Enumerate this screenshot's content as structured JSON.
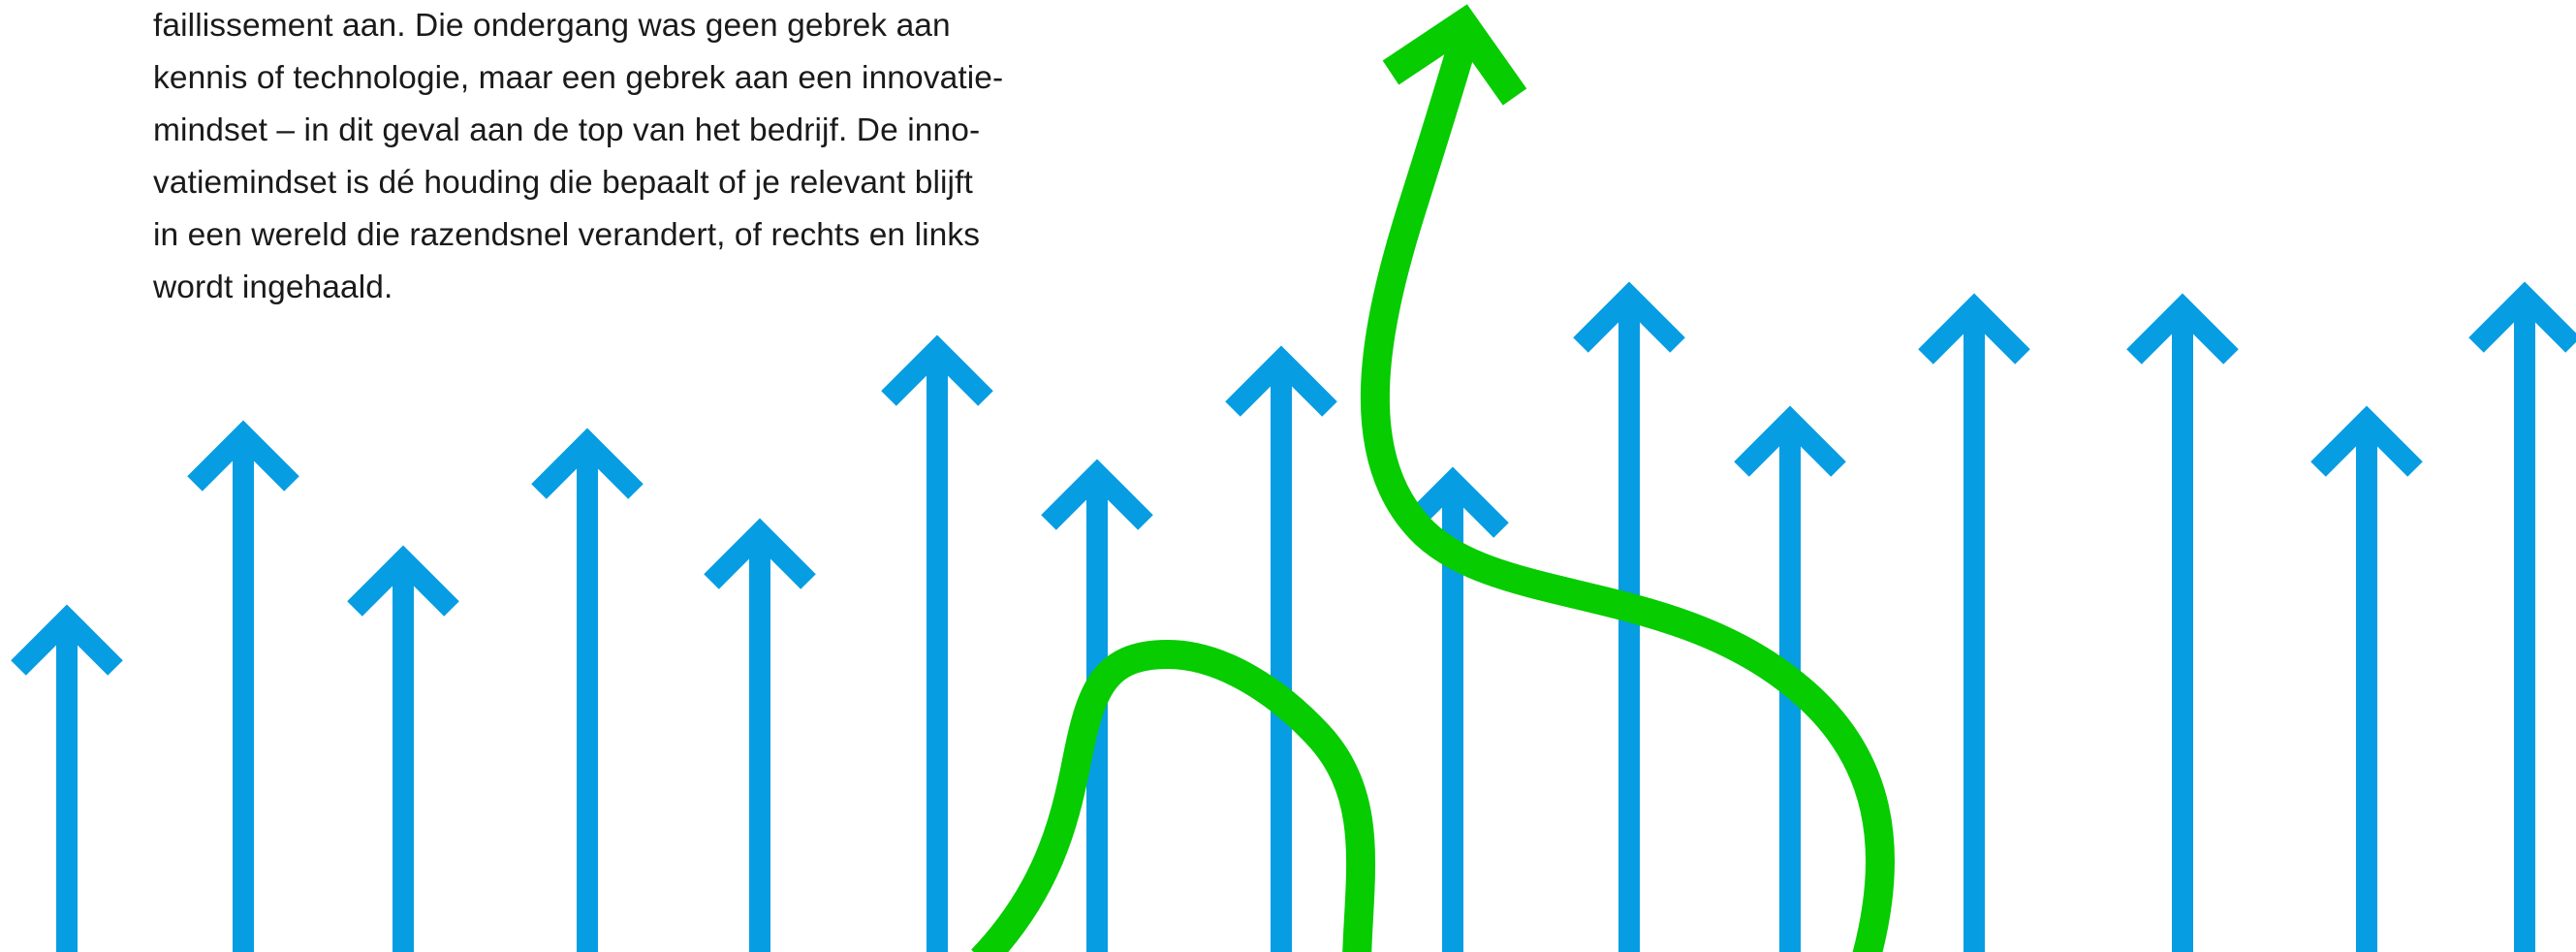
{
  "article": {
    "lines": [
      "faillissement aan. Die ondergang was geen gebrek aan",
      "kennis of technologie, maar een gebrek aan een innovatie-",
      "mindset – in dit geval aan de top van het bedrijf. De inno-",
      "vatiemindset is dé houding die bepaalt of je relevant blijft",
      "in een wereld die razendsnel verandert, of rechts en links",
      "wordt ingehaald."
    ]
  },
  "illustration": {
    "arrow_color": "#079DE3",
    "curve_color": "#06CC00",
    "blue_arrow_count": 15,
    "green_arrow_count": 1
  }
}
